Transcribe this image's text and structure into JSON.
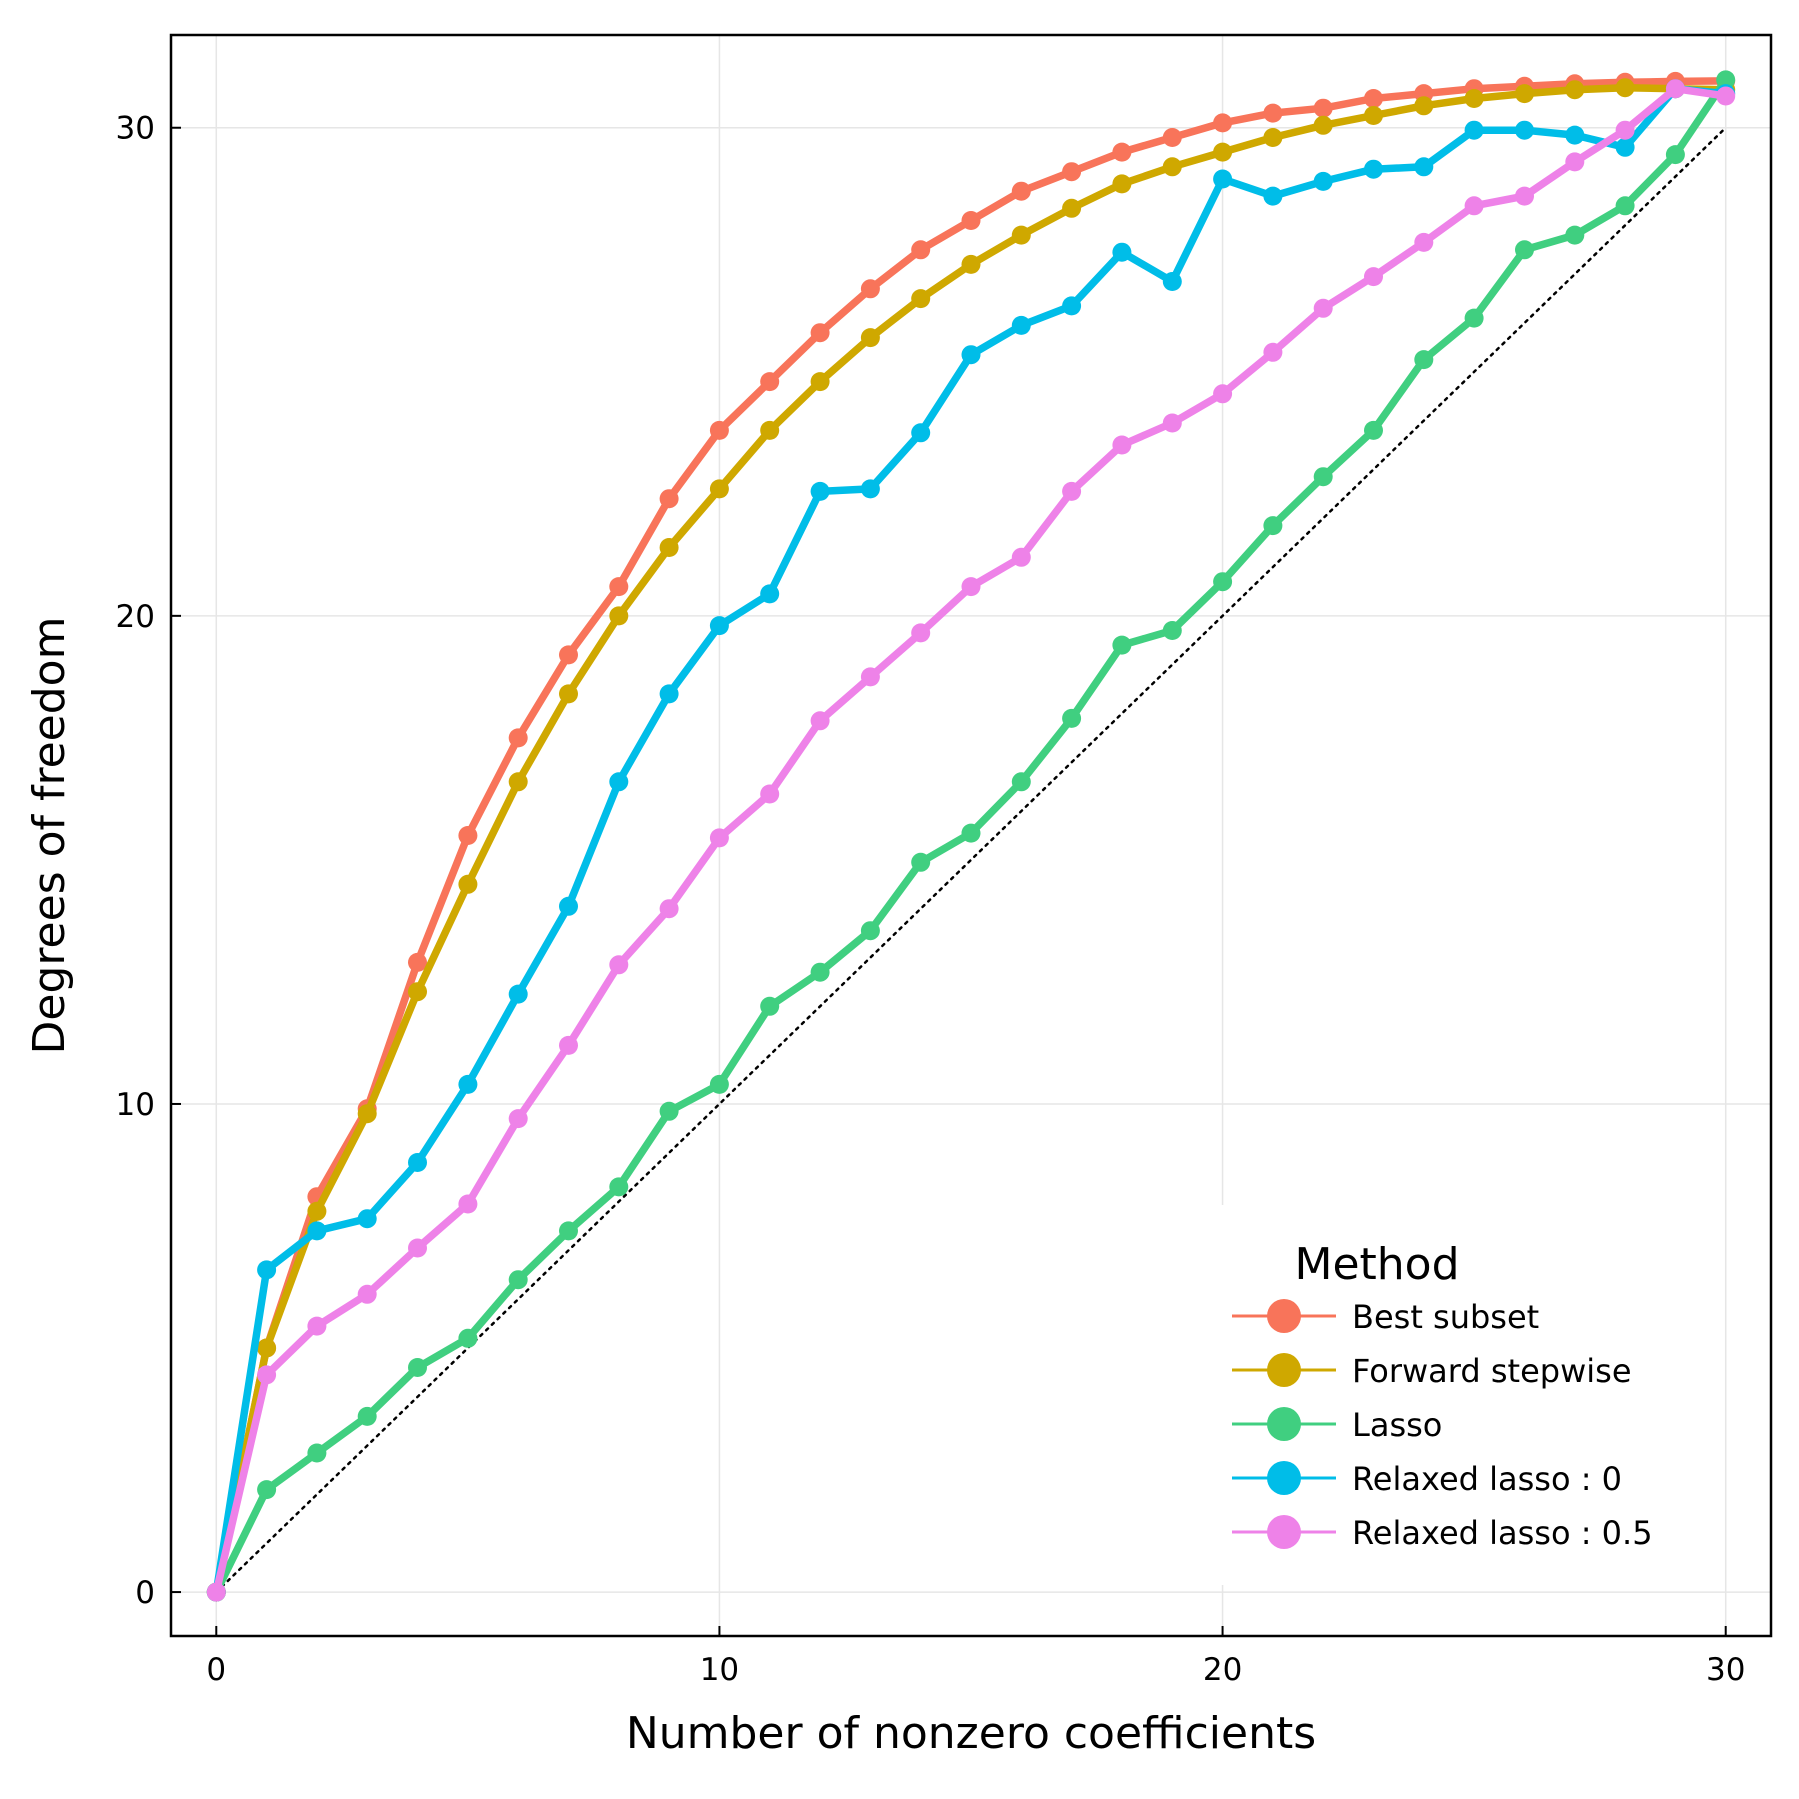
{
  "chart_data": {
    "type": "line",
    "xlabel": "Number of nonzero coefficients",
    "ylabel": "Degrees of freedom",
    "xlim": [
      -0.9,
      30.9
    ],
    "ylim": [
      -0.9,
      31.9
    ],
    "xticks": [
      0,
      10,
      20,
      30
    ],
    "yticks": [
      0,
      10,
      20,
      30
    ],
    "grid": true,
    "legend": {
      "title": "Method",
      "placement": "bottom-right"
    },
    "reference_line": {
      "style": "dotted",
      "color": "#000000",
      "x": [
        0,
        30
      ],
      "y": [
        0,
        30
      ]
    },
    "x": [
      0,
      1,
      2,
      3,
      4,
      5,
      6,
      7,
      8,
      9,
      10,
      11,
      12,
      13,
      14,
      15,
      16,
      17,
      18,
      19,
      20,
      21,
      22,
      23,
      24,
      25,
      26,
      27,
      28,
      29,
      30
    ],
    "series": [
      {
        "name": "Best subset",
        "color": "#f8745a",
        "values": [
          0,
          5.0,
          8.1,
          9.9,
          12.9,
          15.5,
          17.5,
          19.2,
          20.6,
          22.4,
          23.8,
          24.8,
          25.8,
          26.7,
          27.5,
          28.1,
          28.7,
          29.1,
          29.5,
          29.8,
          30.1,
          30.3,
          30.4,
          30.6,
          30.7,
          30.8,
          30.85,
          30.9,
          30.93,
          30.95,
          30.96
        ]
      },
      {
        "name": "Forward stepwise",
        "color": "#cfa800",
        "values": [
          0,
          5.0,
          7.8,
          9.8,
          12.3,
          14.5,
          16.6,
          18.4,
          20.0,
          21.4,
          22.6,
          23.8,
          24.8,
          25.7,
          26.5,
          27.2,
          27.8,
          28.35,
          28.85,
          29.2,
          29.5,
          29.8,
          30.05,
          30.25,
          30.45,
          30.6,
          30.7,
          30.78,
          30.82,
          30.8,
          30.78
        ]
      },
      {
        "name": "Lasso",
        "color": "#40cf80",
        "values": [
          0,
          2.1,
          2.85,
          3.6,
          4.6,
          5.2,
          6.4,
          7.4,
          8.3,
          9.85,
          10.4,
          12.0,
          12.7,
          13.55,
          14.95,
          15.55,
          16.6,
          17.9,
          19.4,
          19.7,
          20.7,
          21.85,
          22.85,
          23.8,
          25.25,
          26.1,
          27.5,
          27.8,
          28.4,
          29.45,
          30.98
        ]
      },
      {
        "name": "Relaxed lasso : 0",
        "color": "#00bde8",
        "values": [
          0,
          6.6,
          7.4,
          7.65,
          8.8,
          10.4,
          12.25,
          14.05,
          16.6,
          18.4,
          19.8,
          20.45,
          22.55,
          22.6,
          23.75,
          25.35,
          25.95,
          26.35,
          27.45,
          26.85,
          28.95,
          28.6,
          28.9,
          29.15,
          29.2,
          29.95,
          29.95,
          29.85,
          29.6,
          30.8,
          30.7
        ]
      },
      {
        "name": "Relaxed lasso : 0.5",
        "color": "#ee82e8",
        "values": [
          0,
          4.45,
          5.45,
          6.1,
          7.05,
          7.95,
          9.7,
          11.2,
          12.85,
          14.0,
          15.45,
          16.35,
          17.85,
          18.75,
          19.65,
          20.6,
          21.2,
          22.55,
          23.5,
          23.95,
          24.55,
          25.4,
          26.3,
          26.95,
          27.65,
          28.4,
          28.6,
          29.3,
          29.95,
          30.8,
          30.65
        ]
      }
    ]
  }
}
